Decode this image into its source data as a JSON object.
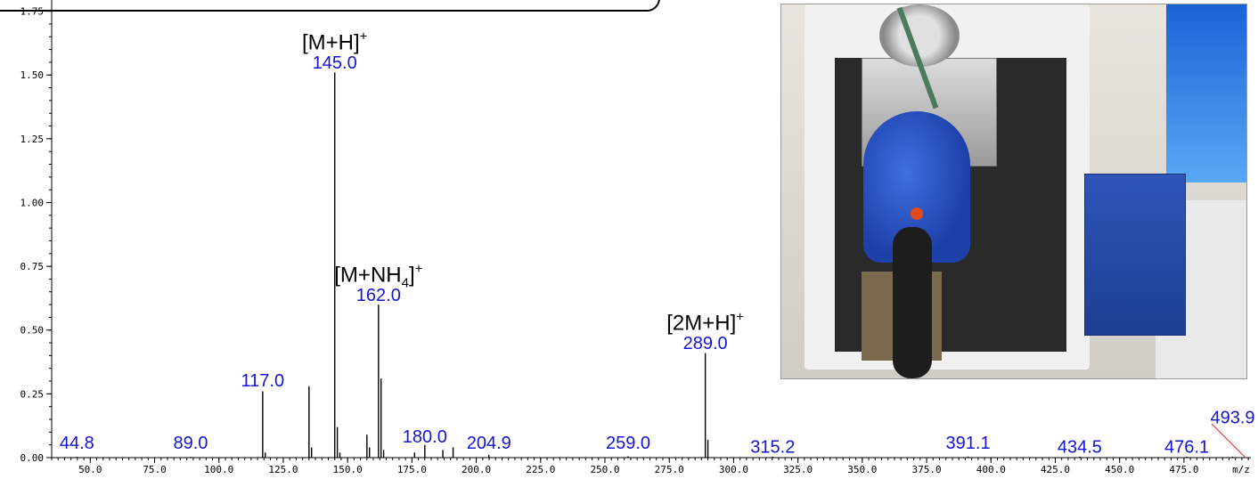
{
  "chart_data": {
    "type": "mass_spectrum_stick",
    "x_axis": {
      "label": "m/z",
      "range": [
        35.0,
        501.0
      ],
      "ticks": [
        "50.0",
        "75.0",
        "100.0",
        "125.0",
        "150.0",
        "175.0",
        "200.0",
        "225.0",
        "250.0",
        "275.0",
        "300.0",
        "325.0",
        "350.0",
        "375.0",
        "400.0",
        "425.0",
        "450.0",
        "475.0"
      ],
      "tick_values": [
        50,
        75,
        100,
        125,
        150,
        175,
        200,
        225,
        250,
        275,
        300,
        325,
        350,
        375,
        400,
        425,
        450,
        475
      ]
    },
    "y_axis": {
      "range": [
        0,
        1.78
      ],
      "ticks": [
        "0.00",
        "0.25",
        "0.50",
        "0.75",
        "1.00",
        "1.25",
        "1.50",
        "1.75"
      ],
      "tick_values": [
        0,
        0.25,
        0.5,
        0.75,
        1.0,
        1.25,
        1.5,
        1.75
      ]
    },
    "peaks": [
      {
        "mz": 44.8,
        "intensity": 0.003
      },
      {
        "mz": 89.0,
        "intensity": 0.003
      },
      {
        "mz": 117.0,
        "intensity": 0.26
      },
      {
        "mz": 118.0,
        "intensity": 0.02
      },
      {
        "mz": 135.0,
        "intensity": 0.28
      },
      {
        "mz": 136.0,
        "intensity": 0.04
      },
      {
        "mz": 145.0,
        "intensity": 1.51
      },
      {
        "mz": 146.0,
        "intensity": 0.12
      },
      {
        "mz": 147.0,
        "intensity": 0.02
      },
      {
        "mz": 157.5,
        "intensity": 0.09
      },
      {
        "mz": 158.5,
        "intensity": 0.04
      },
      {
        "mz": 162.0,
        "intensity": 0.6
      },
      {
        "mz": 163.0,
        "intensity": 0.31
      },
      {
        "mz": 164.0,
        "intensity": 0.03
      },
      {
        "mz": 176.0,
        "intensity": 0.02
      },
      {
        "mz": 180.0,
        "intensity": 0.05
      },
      {
        "mz": 187.0,
        "intensity": 0.03
      },
      {
        "mz": 191.0,
        "intensity": 0.04
      },
      {
        "mz": 204.9,
        "intensity": 0.01
      },
      {
        "mz": 259.0,
        "intensity": 0.005
      },
      {
        "mz": 289.0,
        "intensity": 0.41
      },
      {
        "mz": 290.0,
        "intensity": 0.07
      },
      {
        "mz": 315.2,
        "intensity": 0.004
      },
      {
        "mz": 391.1,
        "intensity": 0.004
      },
      {
        "mz": 434.5,
        "intensity": 0.004
      },
      {
        "mz": 476.1,
        "intensity": 0.004
      },
      {
        "mz": 493.9,
        "intensity": 0.004
      }
    ],
    "peak_labels": [
      {
        "text": "44.8",
        "mz": 44.8,
        "y": 0.035
      },
      {
        "text": "89.0",
        "mz": 89.0,
        "y": 0.035
      },
      {
        "text": "117.0",
        "mz": 117.0,
        "y": 0.28
      },
      {
        "text": "145.0",
        "mz": 145.0,
        "y": 1.525
      },
      {
        "text": "162.0",
        "mz": 162.0,
        "y": 0.615
      },
      {
        "text": "180.0",
        "mz": 180.0,
        "y": 0.06
      },
      {
        "text": "204.9",
        "mz": 204.9,
        "y": 0.035
      },
      {
        "text": "259.0",
        "mz": 259.0,
        "y": 0.035
      },
      {
        "text": "289.0",
        "mz": 289.0,
        "y": 0.425
      },
      {
        "text": "315.2",
        "mz": 315.2,
        "y": 0.02
      },
      {
        "text": "391.1",
        "mz": 391.1,
        "y": 0.035
      },
      {
        "text": "434.5",
        "mz": 434.5,
        "y": 0.02
      },
      {
        "text": "476.1",
        "mz": 476.1,
        "y": 0.02
      },
      {
        "text": "493.9",
        "mz": 493.9,
        "y": 0.135
      }
    ],
    "ion_annotations": [
      {
        "base": "[M+H]",
        "sub": "",
        "close": "",
        "sup": "+",
        "mz": 145.0,
        "y": 1.6
      },
      {
        "base": "[M+NH",
        "sub": "4",
        "close": "]",
        "sup": "+",
        "mz": 162.0,
        "y": 0.69
      },
      {
        "base": "[2M+H]",
        "sub": "",
        "close": "",
        "sup": "+",
        "mz": 289.0,
        "y": 0.5
      }
    ]
  }
}
